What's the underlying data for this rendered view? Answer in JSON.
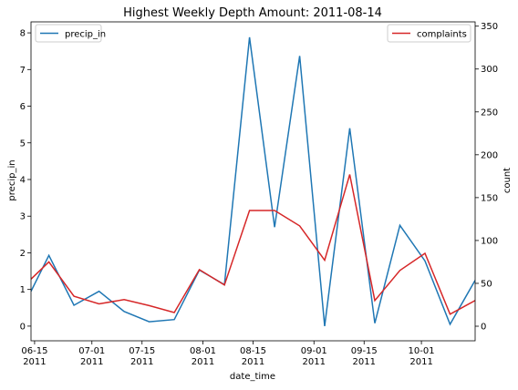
{
  "chart_data": {
    "type": "line",
    "title": "Highest Weekly Depth Amount: 2011-08-14",
    "xlabel": "date_time",
    "x_ticks": [
      {
        "date": "2011-06-15",
        "line1": "06-15",
        "line2": "2011"
      },
      {
        "date": "2011-07-01",
        "line1": "07-01",
        "line2": "2011"
      },
      {
        "date": "2011-07-15",
        "line1": "07-15",
        "line2": "2011"
      },
      {
        "date": "2011-08-01",
        "line1": "08-01",
        "line2": "2011"
      },
      {
        "date": "2011-08-15",
        "line1": "08-15",
        "line2": "2011"
      },
      {
        "date": "2011-09-01",
        "line1": "09-01",
        "line2": "2011"
      },
      {
        "date": "2011-09-15",
        "line1": "09-15",
        "line2": "2011"
      },
      {
        "date": "2011-10-01",
        "line1": "10-01",
        "line2": "2011"
      }
    ],
    "xlim": [
      "2011-06-14",
      "2011-10-16"
    ],
    "left_axis": {
      "label": "precip_in",
      "ylim": [
        -0.4,
        8.3
      ],
      "ticks": [
        0,
        1,
        2,
        3,
        4,
        5,
        6,
        7,
        8
      ]
    },
    "right_axis": {
      "label": "count",
      "ylim": [
        -17,
        355
      ],
      "ticks": [
        0,
        50,
        100,
        150,
        200,
        250,
        300,
        350
      ]
    },
    "series": [
      {
        "name": "precip_in",
        "axis": "left",
        "color": "#1f77b4",
        "x": [
          "2011-06-14",
          "2011-06-19",
          "2011-06-26",
          "2011-07-03",
          "2011-07-10",
          "2011-07-17",
          "2011-07-24",
          "2011-07-31",
          "2011-08-07",
          "2011-08-14",
          "2011-08-21",
          "2011-08-28",
          "2011-09-04",
          "2011-09-11",
          "2011-09-18",
          "2011-09-25",
          "2011-10-02",
          "2011-10-09",
          "2011-10-16"
        ],
        "values": [
          0.95,
          1.93,
          0.57,
          0.95,
          0.4,
          0.12,
          0.18,
          1.53,
          1.13,
          7.88,
          2.7,
          7.37,
          0.0,
          5.4,
          0.08,
          2.75,
          1.78,
          0.05,
          1.25
        ]
      },
      {
        "name": "complaints",
        "axis": "right",
        "color": "#d62728",
        "x": [
          "2011-06-14",
          "2011-06-19",
          "2011-06-26",
          "2011-07-03",
          "2011-07-10",
          "2011-07-17",
          "2011-07-24",
          "2011-07-31",
          "2011-08-07",
          "2011-08-14",
          "2011-08-21",
          "2011-08-28",
          "2011-09-04",
          "2011-09-11",
          "2011-09-18",
          "2011-09-25",
          "2011-10-02",
          "2011-10-09",
          "2011-10-16"
        ],
        "values": [
          55,
          75,
          35,
          26,
          31,
          24,
          16,
          66,
          48,
          135,
          135,
          117,
          77,
          177,
          30,
          65,
          85,
          14,
          30
        ]
      }
    ],
    "legends": [
      {
        "placement": "top-left",
        "entries": [
          "precip_in"
        ]
      },
      {
        "placement": "top-right",
        "entries": [
          "complaints"
        ]
      }
    ]
  }
}
